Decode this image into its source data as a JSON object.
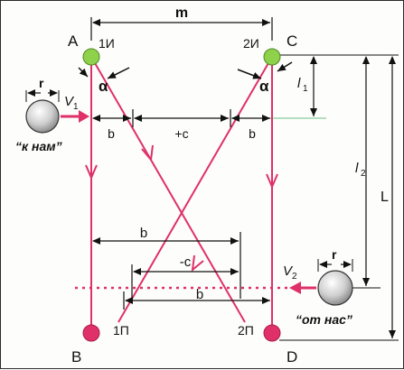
{
  "points": {
    "A": "A",
    "C": "C",
    "B": "B",
    "D": "D",
    "emit_1": "1И",
    "emit_2": "2И",
    "recv_1": "1П",
    "recv_2": "2П"
  },
  "dimensions": {
    "m": "m",
    "b_top_left": "b",
    "c_plus": "+c",
    "b_top_right": "b",
    "b_lower_1": "b",
    "c_minus": "-c",
    "b_lower_2": "b",
    "l1": "l",
    "l1_sub": "1",
    "l2": "l",
    "l2_sub": "2",
    "L": "L",
    "r_left": "r",
    "r_right": "r"
  },
  "angles": {
    "alpha_left": "α",
    "alpha_right": "α"
  },
  "objects": {
    "v1": "V",
    "v1_sub": "1",
    "v2": "V",
    "v2_sub": "2",
    "toward_label": "“к нам”",
    "away_label": "“от нас”"
  },
  "colors": {
    "beam": "#e0306a",
    "emitter": "#8fd14a",
    "receiver": "#e0306a",
    "dim_line": "#111111",
    "accent_line": "#6cc08a"
  }
}
